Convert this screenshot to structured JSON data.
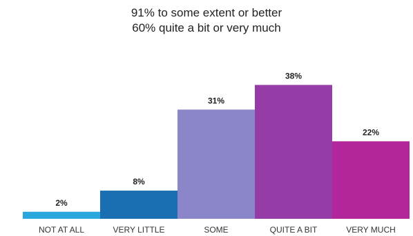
{
  "title_lines": [
    "91% to some extent or better",
    "60% quite a bit or very much"
  ],
  "chart_data": {
    "type": "bar",
    "categories": [
      "NOT AT ALL",
      "VERY LITTLE",
      "SOME",
      "QUITE A BIT",
      "VERY MUCH"
    ],
    "values": [
      2,
      8,
      31,
      38,
      22
    ],
    "data_labels": [
      "2%",
      "8%",
      "31%",
      "38%",
      "22%"
    ],
    "colors": [
      "#2aa7dc",
      "#1a6fb2",
      "#8a86c9",
      "#963ca6",
      "#b3259a"
    ],
    "title": "91% to some extent or better\n60% quite a bit or very much",
    "xlabel": "",
    "ylabel": "",
    "ylim": [
      0,
      40
    ],
    "grid": false,
    "legend": "none"
  }
}
